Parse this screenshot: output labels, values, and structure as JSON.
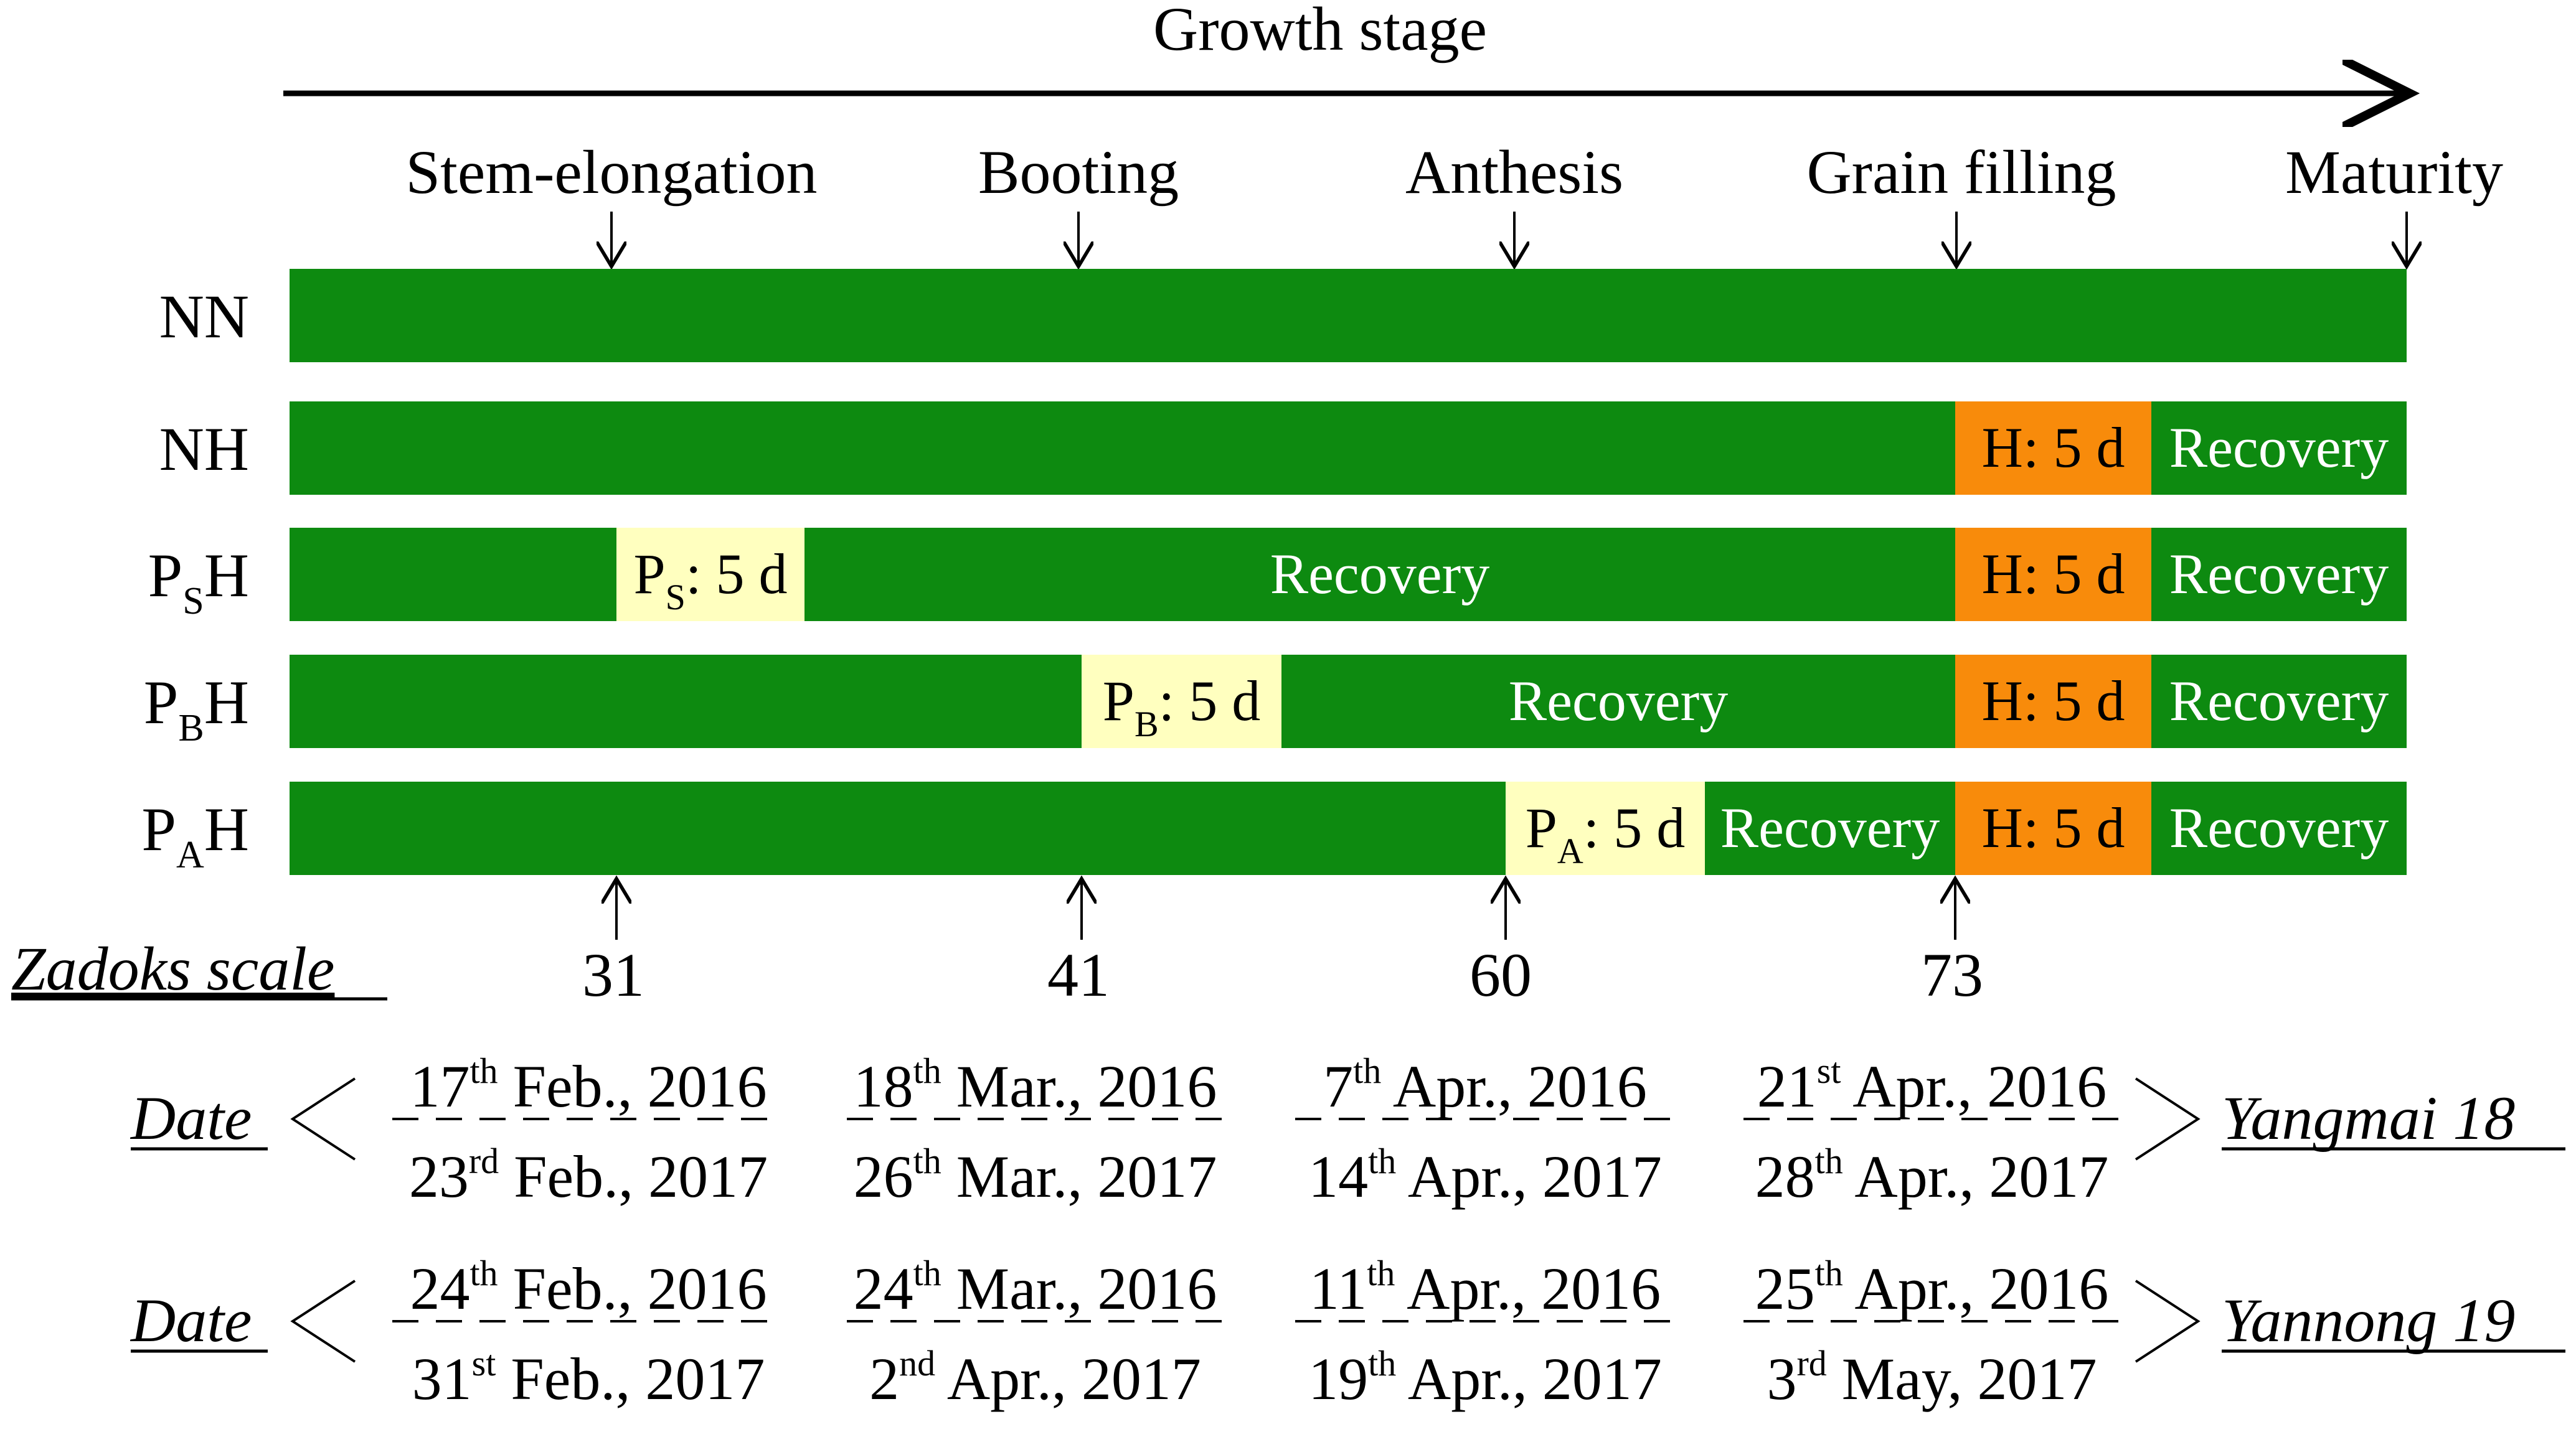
{
  "header": {
    "title": "Growth stage"
  },
  "stages": [
    {
      "label": "Stem-elongation"
    },
    {
      "label": "Booting"
    },
    {
      "label": "Anthesis"
    },
    {
      "label": "Grain filling"
    },
    {
      "label": "Maturity"
    }
  ],
  "colors": {
    "normal": "#0d8a10",
    "heat": "#f88b0b",
    "priming": "#ffffbf",
    "text_light": "#ffffff",
    "text_dark": "#000000"
  },
  "treatments": [
    {
      "name_main": "NN",
      "name_sub": "",
      "segments": [
        {
          "kind": "normal",
          "label": ""
        }
      ]
    },
    {
      "name_main": "NH",
      "name_sub": "",
      "segments": [
        {
          "kind": "normal",
          "label": ""
        },
        {
          "kind": "heat",
          "label": "H: 5 d"
        },
        {
          "kind": "normal",
          "label": "Recovery"
        }
      ]
    },
    {
      "name_main": "P",
      "name_sub": "S",
      "name_tail": "H",
      "segments": [
        {
          "kind": "normal",
          "label": ""
        },
        {
          "kind": "priming",
          "label_main": "P",
          "label_sub": "S",
          "label_tail": ": 5 d"
        },
        {
          "kind": "normal",
          "label": "Recovery"
        },
        {
          "kind": "heat",
          "label": "H: 5 d"
        },
        {
          "kind": "normal",
          "label": "Recovery"
        }
      ]
    },
    {
      "name_main": "P",
      "name_sub": "B",
      "name_tail": "H",
      "segments": [
        {
          "kind": "normal",
          "label": ""
        },
        {
          "kind": "priming",
          "label_main": "P",
          "label_sub": "B",
          "label_tail": ": 5 d"
        },
        {
          "kind": "normal",
          "label": "Recovery"
        },
        {
          "kind": "heat",
          "label": "H: 5 d"
        },
        {
          "kind": "normal",
          "label": "Recovery"
        }
      ]
    },
    {
      "name_main": "P",
      "name_sub": "A",
      "name_tail": "H",
      "segments": [
        {
          "kind": "normal",
          "label": ""
        },
        {
          "kind": "priming",
          "label_main": "P",
          "label_sub": "A",
          "label_tail": ": 5 d"
        },
        {
          "kind": "normal",
          "label": "Recovery"
        },
        {
          "kind": "heat",
          "label": "H: 5 d"
        },
        {
          "kind": "normal",
          "label": "Recovery"
        }
      ]
    }
  ],
  "zadoks": {
    "label": "Zadoks scale",
    "values": [
      "31",
      "41",
      "60",
      "73"
    ]
  },
  "dates": [
    {
      "label": "Date",
      "cultivar": "Yangmai 18",
      "entries": [
        {
          "top": {
            "day": "17",
            "suffix": "th",
            "rest": " Feb., 2016"
          },
          "bottom": {
            "day": "23",
            "suffix": "rd",
            "rest": " Feb., 2017"
          }
        },
        {
          "top": {
            "day": "18",
            "suffix": "th",
            "rest": " Mar., 2016"
          },
          "bottom": {
            "day": "26",
            "suffix": "th",
            "rest": " Mar., 2017"
          }
        },
        {
          "top": {
            "day": "7",
            "suffix": "th",
            "rest": " Apr., 2016"
          },
          "bottom": {
            "day": "14",
            "suffix": "th",
            "rest": " Apr., 2017"
          }
        },
        {
          "top": {
            "day": "21",
            "suffix": "st",
            "rest": " Apr., 2016"
          },
          "bottom": {
            "day": "28",
            "suffix": "th",
            "rest": " Apr., 2017"
          }
        }
      ]
    },
    {
      "label": "Date",
      "cultivar": "Yannong 19",
      "entries": [
        {
          "top": {
            "day": "24",
            "suffix": "th",
            "rest": " Feb., 2016"
          },
          "bottom": {
            "day": "31",
            "suffix": "st",
            "rest": " Feb., 2017"
          }
        },
        {
          "top": {
            "day": "24",
            "suffix": "th",
            "rest": " Mar., 2016"
          },
          "bottom": {
            "day": "2",
            "suffix": "nd",
            "rest": " Apr., 2017"
          }
        },
        {
          "top": {
            "day": "11",
            "suffix": "th",
            "rest": " Apr., 2016"
          },
          "bottom": {
            "day": "19",
            "suffix": "th",
            "rest": " Apr., 2017"
          }
        },
        {
          "top": {
            "day": "25",
            "suffix": "th",
            "rest": " Apr., 2016"
          },
          "bottom": {
            "day": "3",
            "suffix": "rd",
            "rest": " May, 2017"
          }
        }
      ]
    }
  ]
}
